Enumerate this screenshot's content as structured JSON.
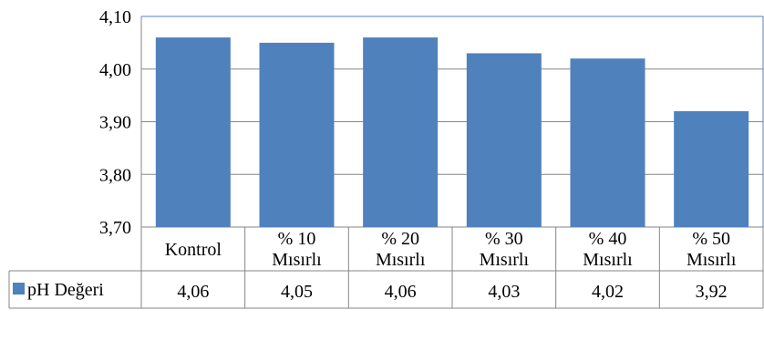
{
  "chart_data": {
    "type": "bar",
    "categories": [
      [
        "Kontrol"
      ],
      [
        "% 10",
        "Mısırlı"
      ],
      [
        "% 20",
        "Mısırlı"
      ],
      [
        "% 30",
        "Mısırlı"
      ],
      [
        "% 40",
        "Mısırlı"
      ],
      [
        "% 50",
        "Mısırlı"
      ]
    ],
    "series": [
      {
        "name": "pH Değeri",
        "values": [
          4.06,
          4.05,
          4.06,
          4.03,
          4.02,
          3.92
        ],
        "value_labels": [
          "4,06",
          "4,05",
          "4,06",
          "4,03",
          "4,02",
          "3,92"
        ],
        "color": "#4F81BD"
      }
    ],
    "y_ticks": [
      {
        "value": 4.1,
        "label": "4,10"
      },
      {
        "value": 4.0,
        "label": "4,00"
      },
      {
        "value": 3.9,
        "label": "3,90"
      },
      {
        "value": 3.8,
        "label": "3,80"
      },
      {
        "value": 3.7,
        "label": "3,70"
      }
    ],
    "ylim": [
      3.7,
      4.1
    ],
    "grid": true,
    "legend": "data-table-left",
    "data_table": true,
    "colors": {
      "bar": "#4F81BD",
      "grid": "#868686",
      "table_border": "#868686",
      "frame": "#4F81BD"
    }
  }
}
